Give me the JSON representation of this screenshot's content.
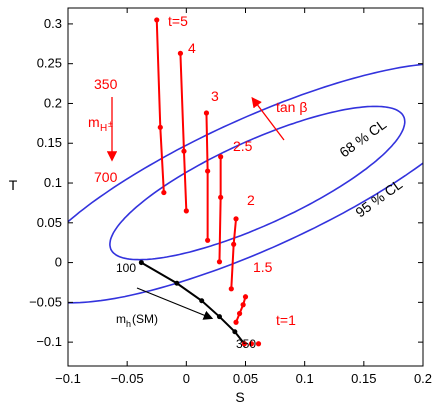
{
  "chart_data": {
    "type": "line",
    "xlabel": "S",
    "ylabel": "T",
    "xlim": [
      -0.1,
      0.2
    ],
    "ylim": [
      -0.13,
      0.32
    ],
    "xticks": [
      -0.1,
      -0.05,
      0,
      0.05,
      0.1,
      0.15,
      0.2
    ],
    "xtick_labels": [
      "−0.1",
      "−0.05",
      "0",
      "0.05",
      "0.1",
      "0.15",
      "0.2"
    ],
    "yticks": [
      -0.1,
      -0.05,
      0,
      0.05,
      0.1,
      0.15,
      0.2,
      0.25,
      0.3
    ],
    "ytick_labels": [
      "−0.1",
      "−0.05",
      "0",
      "0.05",
      "0.1",
      "0.15",
      "0.2",
      "0.25",
      "0.3"
    ],
    "grid": false,
    "colors": {
      "ellipse": "#3333dd",
      "tanbeta": "#ff0000",
      "sm": "#000000"
    },
    "ellipses": [
      {
        "label": "68 % CL",
        "center": [
          0.06,
          0.1
        ],
        "semi_major": 0.15,
        "semi_minor": 0.048,
        "angle_deg": 36
      },
      {
        "label": "95 % CL",
        "center": [
          0.06,
          0.1
        ],
        "semi_major": 0.235,
        "semi_minor": 0.074,
        "angle_deg": 36
      }
    ],
    "red_series": [
      {
        "tan_beta": "t=5",
        "points": [
          [
            -0.025,
            0.305
          ],
          [
            -0.022,
            0.17
          ],
          [
            -0.019,
            0.088
          ]
        ]
      },
      {
        "tan_beta": "4",
        "points": [
          [
            -0.005,
            0.263
          ],
          [
            -0.002,
            0.14
          ],
          [
            0.0,
            0.065
          ]
        ]
      },
      {
        "tan_beta": "3",
        "points": [
          [
            0.017,
            0.188
          ],
          [
            0.018,
            0.115
          ],
          [
            0.018,
            0.028
          ]
        ]
      },
      {
        "tan_beta": "2.5",
        "points": [
          [
            0.029,
            0.133
          ],
          [
            0.029,
            0.082
          ],
          [
            0.028,
            0.001
          ]
        ]
      },
      {
        "tan_beta": "2",
        "points": [
          [
            0.042,
            0.055
          ],
          [
            0.04,
            0.023
          ],
          [
            0.038,
            -0.033
          ]
        ]
      },
      {
        "tan_beta": "1.5",
        "points": [
          [
            0.05,
            -0.043
          ],
          [
            0.048,
            -0.053
          ],
          [
            0.045,
            -0.064
          ],
          [
            0.042,
            -0.075
          ]
        ]
      },
      {
        "tan_beta": "t=1",
        "points": [
          [
            0.049,
            -0.102
          ],
          [
            0.055,
            -0.102
          ],
          [
            0.061,
            -0.102
          ]
        ]
      }
    ],
    "sm_higgs": {
      "label": "m_h (SM)",
      "start_label": "100",
      "end_label": "350",
      "points": [
        [
          -0.038,
          0.0
        ],
        [
          -0.008,
          -0.026
        ],
        [
          0.013,
          -0.048
        ],
        [
          0.028,
          -0.068
        ],
        [
          0.041,
          -0.087
        ],
        [
          0.049,
          -0.102
        ]
      ]
    },
    "annotations": {
      "t5": "t=5",
      "four": "4",
      "three": "3",
      "two_five": "2.5",
      "two": "2",
      "one_five": "1.5",
      "t1": "t=1",
      "mh_low": "350",
      "mh_symbol": "m",
      "mh_sub": "H",
      "mh_sup": "±",
      "mh_high": "700",
      "tanbeta": "tan β",
      "cl68": "68 % CL",
      "cl95": "95 % CL",
      "sm_low": "100",
      "sm_high": "350",
      "sm_label_m": "m",
      "sm_label_h": "h",
      "sm_label_rest": " (SM)"
    }
  }
}
